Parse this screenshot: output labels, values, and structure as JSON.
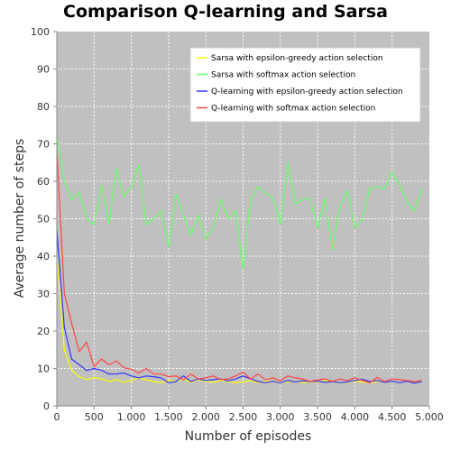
{
  "chart_data": {
    "type": "line",
    "title": "Comparison Q-learning and Sarsa",
    "xlabel": "Number of episodes",
    "ylabel": "Average number of steps",
    "xlim": [
      0,
      5000
    ],
    "ylim": [
      0,
      100
    ],
    "x_ticks": [
      "0",
      "500",
      "1.000",
      "1.500",
      "2.000",
      "2.500",
      "3.000",
      "3.500",
      "4.000",
      "4.500",
      "5.000"
    ],
    "y_ticks": [
      "0",
      "10",
      "20",
      "30",
      "40",
      "50",
      "60",
      "70",
      "80",
      "90",
      "100"
    ],
    "grid": true,
    "legend_position": "top-right",
    "x": [
      0,
      100,
      200,
      300,
      400,
      500,
      600,
      700,
      800,
      900,
      1000,
      1100,
      1200,
      1300,
      1400,
      1500,
      1600,
      1700,
      1800,
      1900,
      2000,
      2100,
      2200,
      2300,
      2400,
      2500,
      2600,
      2700,
      2800,
      2900,
      3000,
      3100,
      3200,
      3300,
      3400,
      3500,
      3600,
      3700,
      3800,
      3900,
      4000,
      4100,
      4200,
      4300,
      4400,
      4500,
      4600,
      4700,
      4800,
      4900
    ],
    "series": [
      {
        "name": "Sarsa with epsilon-greedy action selection",
        "color": "#ffff00",
        "values": [
          41,
          15,
          9.5,
          7.8,
          7,
          7.6,
          7.2,
          6.5,
          7,
          6.3,
          6.8,
          7.5,
          7,
          6.5,
          6.2,
          6.8,
          6.5,
          7.2,
          6.3,
          7,
          6.6,
          6.3,
          6.9,
          6.5,
          6.2,
          6.4,
          6.8,
          6.2,
          6.5,
          6.7,
          6.3,
          6.4,
          6.6,
          6.2,
          6.5,
          6.3,
          6.8,
          6.5,
          6.1,
          6.3,
          6.6,
          6.4,
          6.2,
          6.6,
          6.3,
          6.5,
          6.2,
          6.7,
          6.4,
          6.6
        ]
      },
      {
        "name": "Sarsa with softmax action selection",
        "color": "#66ff66",
        "values": [
          72,
          60,
          55,
          57,
          50,
          48.5,
          59,
          48.5,
          63.5,
          56,
          58.5,
          64.5,
          48.5,
          50,
          52,
          42.5,
          56.5,
          51,
          45.5,
          51,
          44.5,
          47.5,
          55,
          50,
          52,
          36.5,
          55,
          58.5,
          57,
          55.5,
          48.5,
          65,
          54,
          55,
          55.5,
          47.5,
          55.5,
          41.5,
          53.5,
          57.5,
          47.5,
          50,
          58,
          58.5,
          58,
          62.5,
          59,
          54.5,
          52,
          58
        ]
      },
      {
        "name": "Q-learning with epsilon-greedy action selection",
        "color": "#3333ff",
        "values": [
          47,
          21,
          12.5,
          11,
          9.5,
          10,
          9.5,
          8.5,
          8.5,
          8.8,
          8,
          7.5,
          8,
          7.8,
          7.5,
          6.2,
          6.5,
          8,
          6.5,
          7.2,
          6.8,
          7,
          7.2,
          6.7,
          7.2,
          8,
          7.2,
          6.5,
          6.2,
          6.6,
          6.2,
          6.8,
          6.4,
          6.7,
          6.5,
          6.6,
          6.3,
          6.5,
          6.2,
          6.4,
          6.8,
          7.1,
          6.5,
          6.8,
          6.3,
          6.6,
          6.2,
          6.6,
          6.1,
          6.5
        ]
      },
      {
        "name": "Q-learning with softmax action selection",
        "color": "#ff4444",
        "values": [
          68,
          30,
          22,
          14.5,
          17,
          10.5,
          12.5,
          11,
          12,
          10.2,
          9.8,
          8.8,
          10,
          8.5,
          8.5,
          7.8,
          8,
          7,
          8.5,
          7.2,
          7.5,
          8,
          7,
          7.2,
          8,
          9,
          7.2,
          8.5,
          7,
          7.5,
          6.8,
          8,
          7.5,
          7.2,
          6.5,
          7,
          7.2,
          6.5,
          7.2,
          6.8,
          7.5,
          6.8,
          6.2,
          7.6,
          6.5,
          7.2,
          7,
          6.8,
          6.5,
          6.8
        ]
      }
    ]
  }
}
